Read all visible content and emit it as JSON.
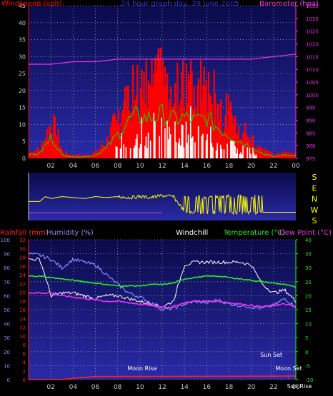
{
  "colors": {
    "background": "#000000",
    "plot_gradient_top": "#0a0a4a",
    "plot_gradient_bottom": "#2a2aa8",
    "axis": "#c8c8c8",
    "grid": "#9a9ab0",
    "windspeed": "#ff0000",
    "gust_fill": "#ffffff",
    "windavg": "#00dd00",
    "barometer": "#ee33ee",
    "direction": "#ffff00",
    "rainfall": "#ff2020",
    "humidity": "#8888ff",
    "windchill": "#ffffff",
    "temperature": "#22ee22",
    "dewpoint": "#ee33ee",
    "title": "#3333ff",
    "sun_moon_text": "#ffffff"
  },
  "top": {
    "title": "24 hour graph day, 29 June 2005",
    "left_label": "Windspeed (kph)",
    "right_label": "Barometer (hpa)"
  },
  "direction": {
    "labels": [
      "S",
      "E",
      "N",
      "W",
      "S"
    ]
  },
  "bottom": {
    "rainfall_label": "Rainfall (mm)",
    "humidity_label": "Humidity (%)",
    "windchill_label": "Windchill",
    "temperature_label": "Temperature (°C)",
    "dewpoint_label": "Dew Point (°C)",
    "events": {
      "moon_rise": "Moon Rise",
      "sun_set": "Sun Set",
      "moon_set": "Moon Set",
      "sun_rise": "Sun Rise"
    }
  },
  "chart_data": [
    {
      "type": "area",
      "title": "24 hour graph day, 29 June 2005",
      "x_ticks": [
        "02",
        "04",
        "06",
        "08",
        "10",
        "12",
        "14",
        "16",
        "18",
        "20",
        "22",
        "00"
      ],
      "left_axis": {
        "label": "Windspeed (kph)",
        "range": [
          0,
          45
        ],
        "ticks": [
          0,
          5,
          10,
          15,
          20,
          25,
          30,
          35,
          40,
          45
        ]
      },
      "right_axis": {
        "label": "Barometer (hpa)",
        "range": [
          975,
          1035
        ],
        "ticks": [
          975,
          980,
          985,
          990,
          995,
          1000,
          1005,
          1010,
          1015,
          1020,
          1025,
          1030,
          1035
        ]
      },
      "grid": true,
      "series": [
        {
          "name": "Windspeed (kph)",
          "style": "filled bars",
          "points": [
            [
              0,
              2
            ],
            [
              1,
              3
            ],
            [
              2,
              12
            ],
            [
              2.5,
              8
            ],
            [
              3,
              2
            ],
            [
              4,
              1
            ],
            [
              5,
              1
            ],
            [
              6,
              2
            ],
            [
              7,
              6
            ],
            [
              8,
              14
            ],
            [
              9,
              22
            ],
            [
              9.5,
              25
            ],
            [
              10,
              24
            ],
            [
              11,
              24
            ],
            [
              12,
              26
            ],
            [
              13,
              23
            ],
            [
              14,
              24
            ],
            [
              15,
              22
            ],
            [
              16,
              24
            ],
            [
              17,
              18
            ],
            [
              18,
              14
            ],
            [
              19,
              10
            ],
            [
              20,
              7
            ],
            [
              21,
              3
            ],
            [
              22,
              1
            ],
            [
              23,
              2
            ],
            [
              24,
              2
            ]
          ]
        },
        {
          "name": "Barometer (hpa)",
          "style": "line",
          "points": [
            [
              0,
              1012
            ],
            [
              2,
              1012
            ],
            [
              4,
              1013
            ],
            [
              6,
              1013
            ],
            [
              8,
              1014
            ],
            [
              10,
              1014
            ],
            [
              12,
              1014
            ],
            [
              14,
              1014
            ],
            [
              16,
              1014
            ],
            [
              18,
              1014
            ],
            [
              20,
              1014
            ],
            [
              22,
              1015
            ],
            [
              24,
              1016
            ]
          ]
        }
      ]
    },
    {
      "type": "line",
      "title": "",
      "y_labels": [
        "S",
        "E",
        "N",
        "W",
        "S"
      ],
      "series": [
        {
          "name": "",
          "points": [
            [
              0,
              2.5
            ],
            [
              1,
              2.5
            ],
            [
              1.5,
              2.0
            ],
            [
              2,
              2.2
            ],
            [
              3,
              2.0
            ],
            [
              4,
              2.1
            ],
            [
              5,
              2.2
            ],
            [
              6,
              2.0
            ],
            [
              7,
              2.1
            ],
            [
              8,
              2.0
            ],
            [
              9,
              2.1
            ],
            [
              10,
              2.0
            ],
            [
              11,
              2.1
            ],
            [
              12,
              1.9
            ],
            [
              13,
              2.0
            ],
            [
              14,
              3.5
            ],
            [
              15,
              3.2
            ],
            [
              16,
              3.6
            ],
            [
              17,
              3.3
            ],
            [
              18,
              3.4
            ],
            [
              19,
              3.5
            ],
            [
              20,
              3.6
            ],
            [
              21,
              3.6
            ],
            [
              22,
              3.6
            ],
            [
              23,
              3.6
            ],
            [
              24,
              3.6
            ]
          ]
        }
      ]
    },
    {
      "type": "line",
      "title": "",
      "x_ticks": [
        "02",
        "04",
        "06",
        "08",
        "10",
        "12",
        "14",
        "16",
        "18",
        "20",
        "22",
        "00"
      ],
      "left_axes": [
        {
          "label": "Humidity (%)",
          "range": [
            0,
            100
          ],
          "ticks": [
            0,
            10,
            20,
            30,
            40,
            50,
            60,
            70,
            80,
            90,
            100
          ]
        },
        {
          "label": "Rainfall (mm)",
          "range": [
            0,
            32
          ],
          "ticks": [
            0,
            2,
            4,
            6,
            8,
            10,
            12,
            14,
            16,
            18,
            20,
            22,
            24,
            26,
            28,
            30,
            32
          ]
        }
      ],
      "right_axis": {
        "label": "Temperature (°C)",
        "range": [
          -10,
          40
        ],
        "ticks": [
          -10,
          -5,
          0,
          5,
          10,
          15,
          20,
          25,
          30,
          35,
          40
        ]
      },
      "grid": true,
      "series": [
        {
          "name": "Humidity (%)",
          "axis": "Humidity (%)",
          "points": [
            [
              0,
              90
            ],
            [
              1,
              89
            ],
            [
              2,
              86
            ],
            [
              3,
              80
            ],
            [
              4,
              86
            ],
            [
              5,
              84
            ],
            [
              6,
              82
            ],
            [
              7,
              75
            ],
            [
              8,
              68
            ],
            [
              9,
              62
            ],
            [
              10,
              59
            ],
            [
              11,
              55
            ],
            [
              12,
              50
            ],
            [
              13,
              51
            ],
            [
              14,
              54
            ],
            [
              15,
              56
            ],
            [
              16,
              55
            ],
            [
              17,
              57
            ],
            [
              18,
              54
            ],
            [
              19,
              53
            ],
            [
              20,
              52
            ],
            [
              21,
              51
            ],
            [
              22,
              53
            ],
            [
              23,
              58
            ],
            [
              24,
              52
            ]
          ]
        },
        {
          "name": "Windchill",
          "axis": "Temperature (°C)",
          "points": [
            [
              0,
              33
            ],
            [
              1,
              33
            ],
            [
              1.5,
              27
            ],
            [
              2,
              20
            ],
            [
              3,
              21
            ],
            [
              4,
              21
            ],
            [
              5,
              20
            ],
            [
              6,
              19
            ],
            [
              7,
              20
            ],
            [
              8,
              20
            ],
            [
              9,
              19
            ],
            [
              10,
              18
            ],
            [
              11,
              17
            ],
            [
              12,
              16
            ],
            [
              13,
              18
            ],
            [
              14,
              31
            ],
            [
              15,
              32
            ],
            [
              16,
              32
            ],
            [
              17,
              32
            ],
            [
              18,
              32
            ],
            [
              19,
              32
            ],
            [
              20,
              31
            ],
            [
              21,
              24
            ],
            [
              22,
              21
            ],
            [
              23,
              22
            ],
            [
              24,
              18
            ]
          ]
        },
        {
          "name": "Temperature (°C)",
          "axis": "Temperature (°C)",
          "points": [
            [
              0,
              27
            ],
            [
              1,
              27
            ],
            [
              2,
              26.5
            ],
            [
              3,
              26
            ],
            [
              4,
              25.5
            ],
            [
              5,
              25
            ],
            [
              6,
              24.5
            ],
            [
              7,
              24
            ],
            [
              8,
              23.5
            ],
            [
              9,
              23.5
            ],
            [
              10,
              23.5
            ],
            [
              11,
              24
            ],
            [
              12,
              24
            ],
            [
              13,
              24.5
            ],
            [
              14,
              26
            ],
            [
              15,
              26.5
            ],
            [
              16,
              27
            ],
            [
              17,
              27
            ],
            [
              18,
              26.5
            ],
            [
              19,
              26
            ],
            [
              20,
              25.5
            ],
            [
              21,
              25
            ],
            [
              22,
              24.5
            ],
            [
              23,
              24
            ],
            [
              24,
              23
            ]
          ]
        },
        {
          "name": "Dew Point (°C)",
          "axis": "Temperature (°C)",
          "points": [
            [
              0,
              21
            ],
            [
              1,
              21
            ],
            [
              2,
              21
            ],
            [
              3,
              20
            ],
            [
              4,
              19.5
            ],
            [
              5,
              19
            ],
            [
              6,
              18.5
            ],
            [
              7,
              18
            ],
            [
              8,
              18
            ],
            [
              9,
              17.5
            ],
            [
              10,
              17
            ],
            [
              11,
              16.5
            ],
            [
              12,
              16
            ],
            [
              13,
              16
            ],
            [
              14,
              17.5
            ],
            [
              15,
              18
            ],
            [
              16,
              18
            ],
            [
              17,
              18
            ],
            [
              18,
              17.5
            ],
            [
              19,
              17
            ],
            [
              20,
              16.5
            ],
            [
              21,
              16
            ],
            [
              22,
              16.5
            ],
            [
              23,
              17
            ],
            [
              24,
              16
            ]
          ]
        },
        {
          "name": "Rainfall (mm)",
          "axis": "Rainfall (mm)",
          "points": [
            [
              0,
              0
            ],
            [
              3,
              0
            ],
            [
              4,
              0.3
            ],
            [
              6,
              0.7
            ],
            [
              24,
              0.8
            ]
          ]
        }
      ],
      "events": [
        {
          "label": "Moon Rise",
          "hour": 10.2
        },
        {
          "label": "Sun Set",
          "hour": 21.8
        },
        {
          "label": "Moon Set",
          "hour": 24
        },
        {
          "label": "Sun Rise",
          "hour": 24.3
        }
      ]
    }
  ]
}
